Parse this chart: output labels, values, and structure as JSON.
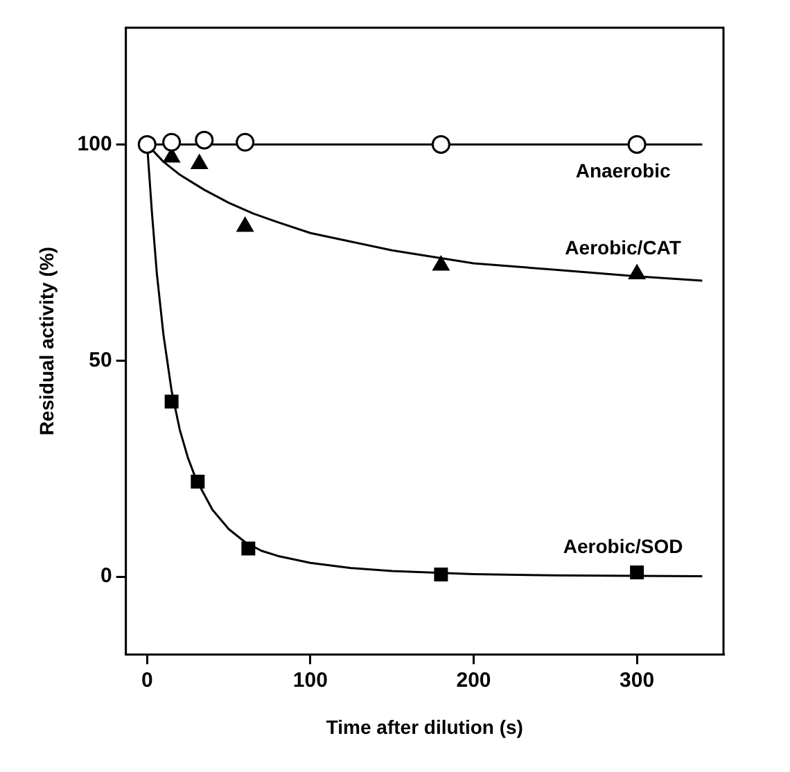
{
  "chart_data": {
    "type": "scatter",
    "xlabel": "Time after dilution (s)",
    "ylabel": "Residual activity (%)",
    "xlim": [
      -13,
      353
    ],
    "xticks": [
      0,
      100,
      200,
      300
    ],
    "ylim": [
      -18,
      127
    ],
    "yticks": [
      0,
      50,
      100
    ],
    "grid": false,
    "legend": false,
    "series": [
      {
        "type": "scatter",
        "name": "Anaerobic",
        "marker": "circle",
        "color": "#000000",
        "x": [
          0,
          15,
          35,
          60,
          180,
          300
        ],
        "values": [
          100,
          100.5,
          101,
          100.5,
          100,
          100
        ]
      },
      {
        "type": "scatter",
        "name": "Aerobic/CAT",
        "marker": "triangle",
        "color": "#000000",
        "x": [
          15,
          32,
          60,
          180,
          300
        ],
        "values": [
          97,
          95.5,
          81,
          72,
          70
        ]
      },
      {
        "type": "scatter",
        "name": "Aerobic/SOD",
        "marker": "square",
        "color": "#000000",
        "x": [
          15,
          31,
          62,
          180,
          300
        ],
        "values": [
          40.5,
          22,
          6.5,
          0.5,
          1
        ]
      },
      {
        "type": "line",
        "marker": "none",
        "color": "#000000",
        "x": [
          0,
          340
        ],
        "values": [
          100,
          100
        ]
      },
      {
        "type": "line",
        "marker": "none",
        "color": "#000000",
        "x": [
          0,
          10,
          20,
          35,
          50,
          65,
          80,
          100,
          125,
          150,
          200,
          250,
          300,
          340
        ],
        "values": [
          100,
          96,
          93,
          89.5,
          86.5,
          84,
          82,
          79.5,
          77.5,
          75.5,
          72.5,
          71,
          69.5,
          68.5
        ]
      },
      {
        "type": "line",
        "marker": "none",
        "color": "#000000",
        "x": [
          0,
          3,
          6,
          10,
          15,
          20,
          25,
          30,
          40,
          50,
          60,
          70,
          80,
          100,
          125,
          150,
          200,
          250,
          300,
          340
        ],
        "values": [
          100,
          84,
          70,
          56,
          43,
          34,
          27.5,
          22.5,
          15.5,
          11,
          8,
          6,
          4.8,
          3.2,
          2,
          1.3,
          0.6,
          0.3,
          0.2,
          0.1
        ]
      }
    ]
  }
}
